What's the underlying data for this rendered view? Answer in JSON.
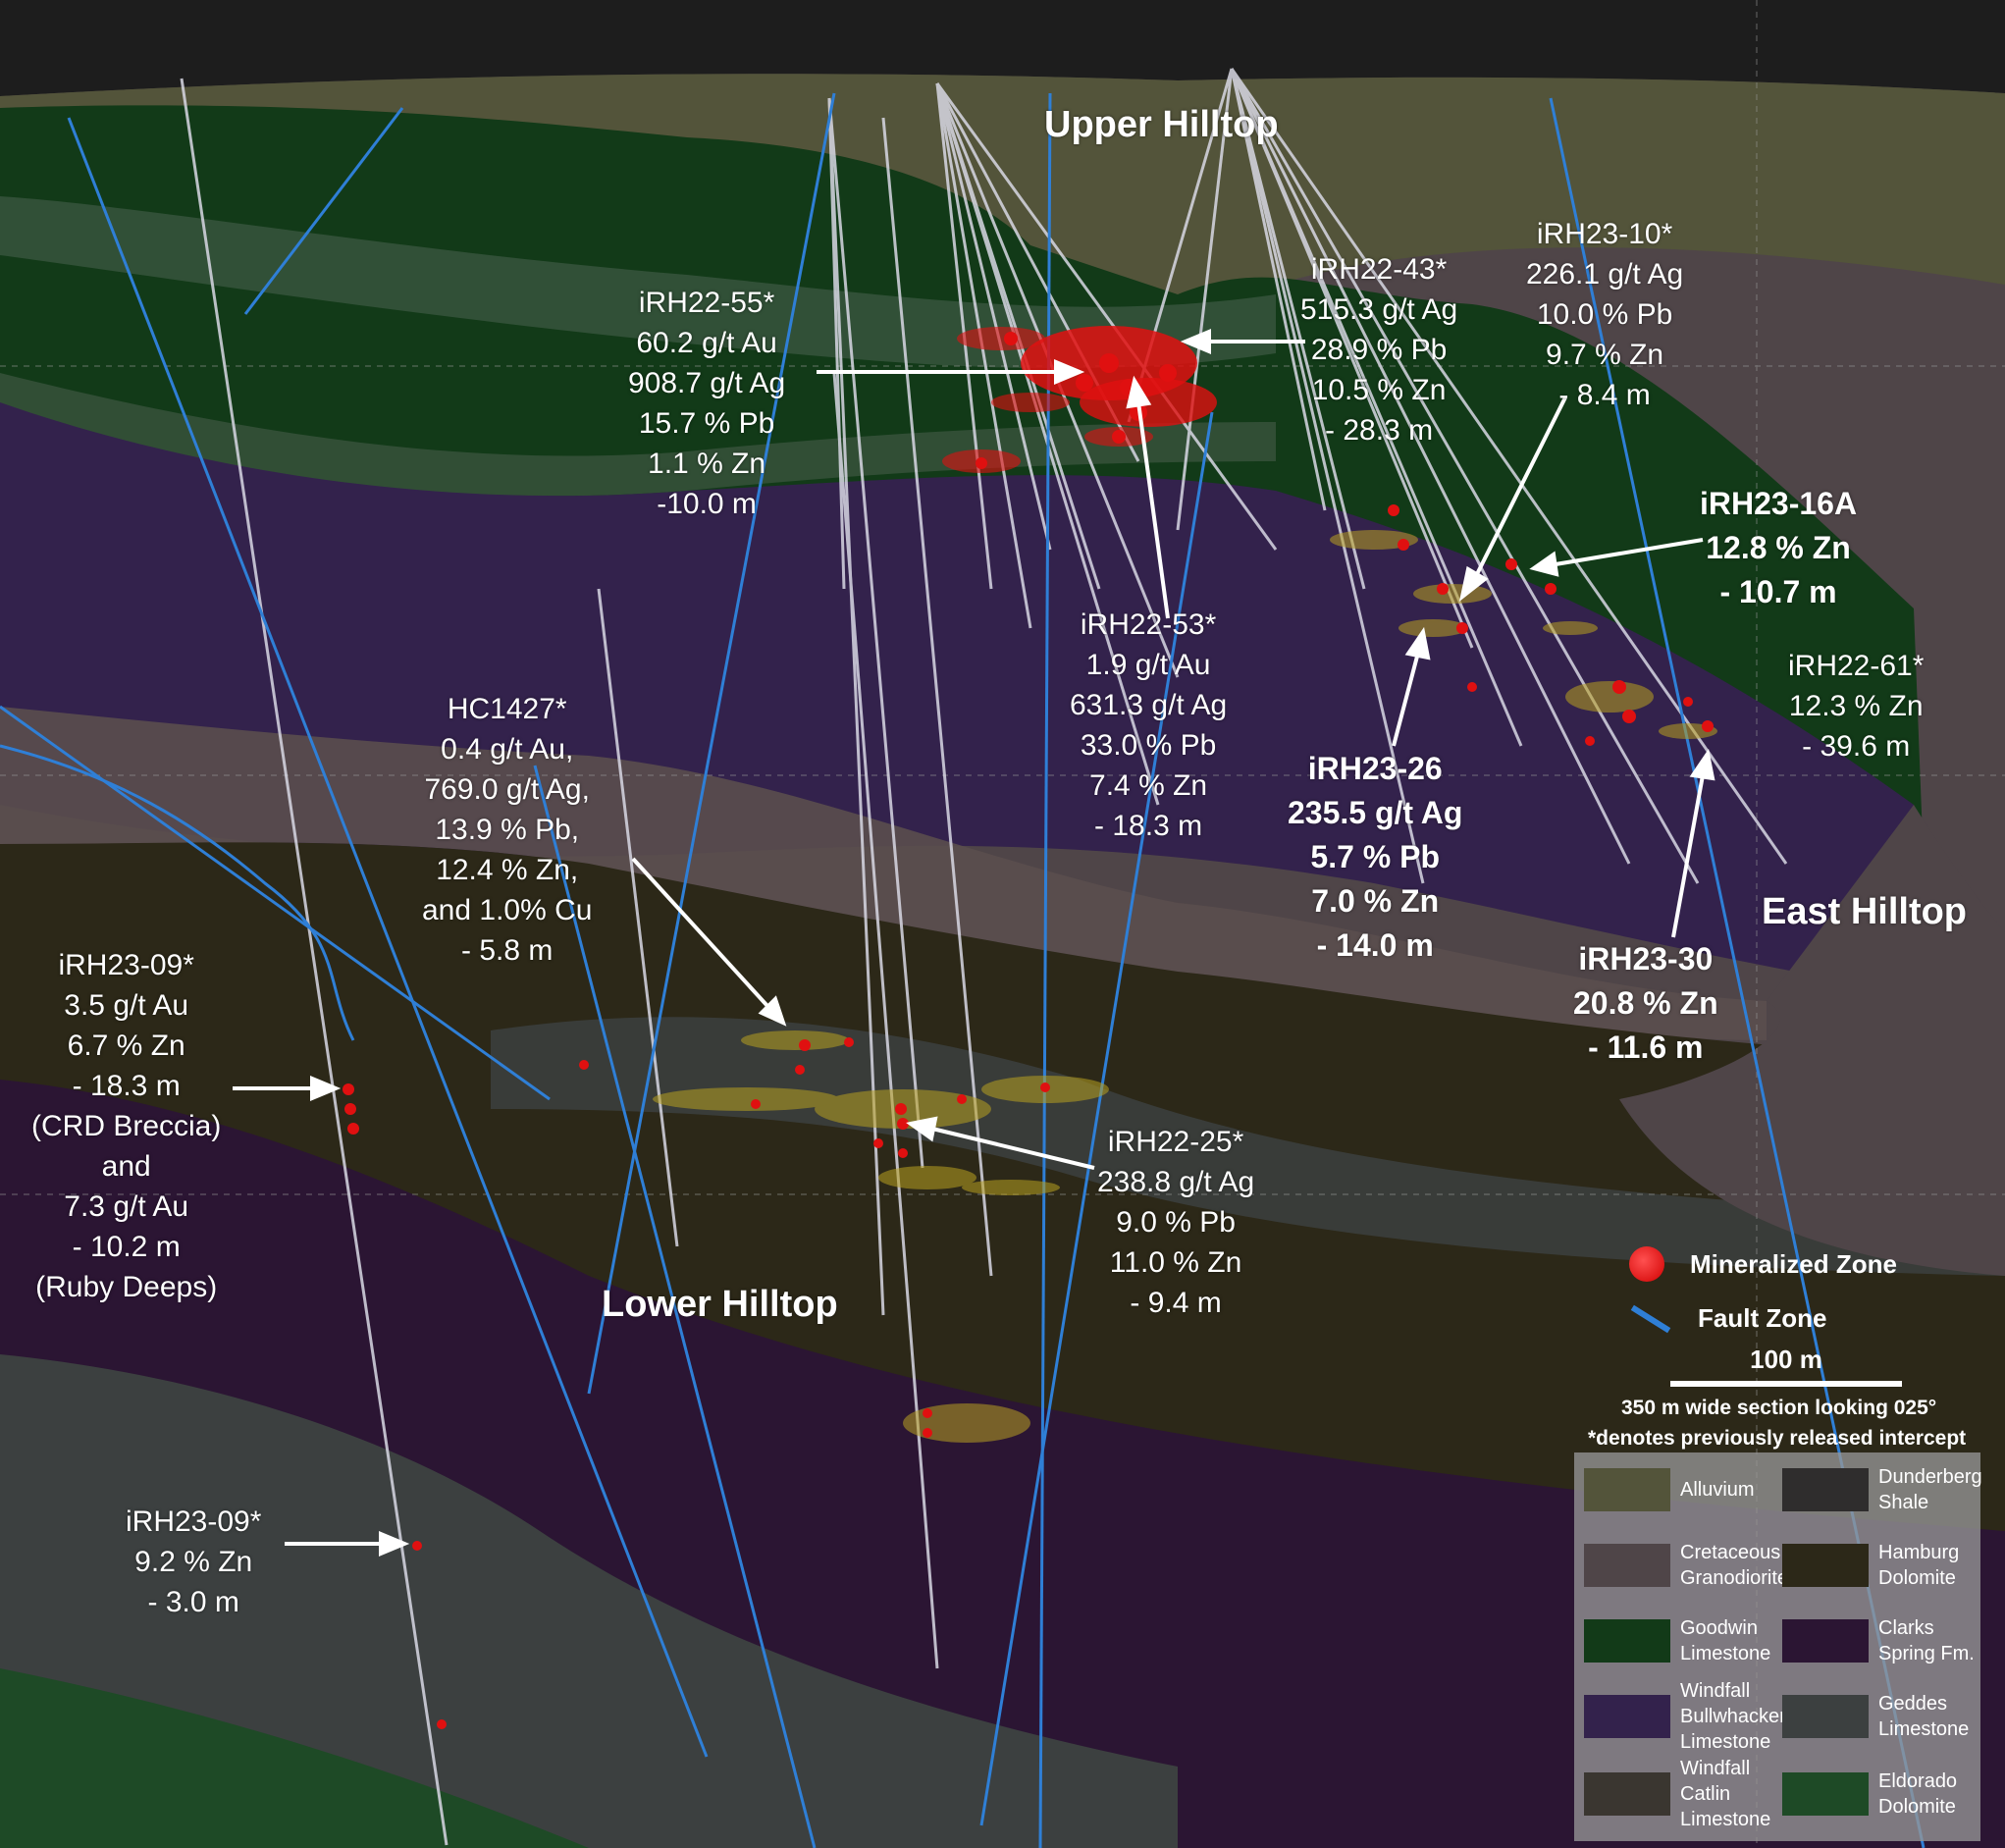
{
  "colors": {
    "mineralized": "#e01010",
    "fault": "#2f7fd6",
    "alluvium": "#53543a",
    "cretaceous_granodiorite": "#4f4548",
    "goodwin_limestone": "#123a18",
    "windfall_bullwhacker": "#33224c",
    "windfall_catlin": "#3a3630",
    "dunderberg_shale": "#2f2d2d",
    "hamburg_dolomite": "#2c2818",
    "clarks_spring": "#2b1533",
    "geddes_limestone": "#3c4040",
    "eldorado_dolomite": "#1e4a26"
  },
  "areas": {
    "upper": "Upper Hilltop",
    "lower": "Lower Hilltop",
    "east": "East Hilltop"
  },
  "intercepts": [
    {
      "id": "iRH22-55",
      "lines": [
        "iRH22-55*",
        "60.2 g/t Au",
        "908.7 g/t Ag",
        "15.7 % Pb",
        "1.1 % Zn",
        "-10.0 m"
      ]
    },
    {
      "id": "iRH22-43",
      "lines": [
        "iRH22-43*",
        "515.3 g/t Ag",
        "28.9 % Pb",
        "10.5 % Zn",
        "- 28.3 m"
      ]
    },
    {
      "id": "iRH23-10",
      "lines": [
        "iRH23-10*",
        "226.1 g/t Ag",
        "10.0 % Pb",
        "9.7 % Zn",
        "- 8.4 m"
      ]
    },
    {
      "id": "iRH23-16A",
      "lines": [
        "iRH23-16A",
        "12.8 % Zn",
        "- 10.7 m"
      ]
    },
    {
      "id": "iRH22-61",
      "lines": [
        "iRH22-61*",
        "12.3 % Zn",
        "- 39.6 m"
      ]
    },
    {
      "id": "iRH22-53",
      "lines": [
        "iRH22-53*",
        "1.9 g/t Au",
        "631.3 g/t Ag",
        "33.0 % Pb",
        "7.4 % Zn",
        "- 18.3 m"
      ]
    },
    {
      "id": "HC1427",
      "lines": [
        "HC1427*",
        "0.4 g/t Au,",
        "769.0 g/t Ag,",
        "13.9 % Pb,",
        "12.4 % Zn,",
        "and 1.0% Cu",
        "- 5.8 m"
      ]
    },
    {
      "id": "iRH23-26",
      "lines": [
        "iRH23-26",
        "235.5 g/t Ag",
        "5.7 % Pb",
        "7.0 % Zn",
        "- 14.0 m"
      ]
    },
    {
      "id": "iRH23-30",
      "lines": [
        "iRH23-30",
        "20.8 % Zn",
        "- 11.6 m"
      ]
    },
    {
      "id": "iRH23-09-upper",
      "lines": [
        "iRH23-09*",
        "3.5 g/t Au",
        "6.7 % Zn",
        "- 18.3 m",
        "(CRD Breccia)",
        "and",
        "7.3 g/t Au",
        "- 10.2 m",
        "(Ruby Deeps)"
      ]
    },
    {
      "id": "iRH22-25",
      "lines": [
        "iRH22-25*",
        "238.8 g/t Ag",
        "9.0 % Pb",
        "11.0 % Zn",
        "- 9.4 m"
      ]
    },
    {
      "id": "iRH23-09-lower",
      "lines": [
        "iRH23-09*",
        "9.2 % Zn",
        "- 3.0 m"
      ]
    }
  ],
  "legend": {
    "mineralized": "Mineralized Zone",
    "fault": "Fault Zone",
    "scale": "100 m",
    "section_note": "350 m wide section looking 025°",
    "asterisk_note": "*denotes previously released intercept",
    "lithologies": [
      {
        "name": "Alluvium",
        "color": "#53543a"
      },
      {
        "name": "Dunderberg Shale",
        "color": "#2f2d2d"
      },
      {
        "name": "Cretaceous Granodiorite",
        "color": "#4f4548"
      },
      {
        "name": "Hamburg Dolomite",
        "color": "#2c2818"
      },
      {
        "name": "Goodwin Limestone",
        "color": "#123a18"
      },
      {
        "name": "Clarks Spring Fm.",
        "color": "#2b1533"
      },
      {
        "name": "Windfall Bullwhacker Limestone",
        "color": "#33224c"
      },
      {
        "name": "Geddes Limestone",
        "color": "#3c4040"
      },
      {
        "name": "Windfall Catlin Limestone",
        "color": "#3a3630"
      },
      {
        "name": "Eldorado Dolomite",
        "color": "#1e4a26"
      }
    ]
  }
}
